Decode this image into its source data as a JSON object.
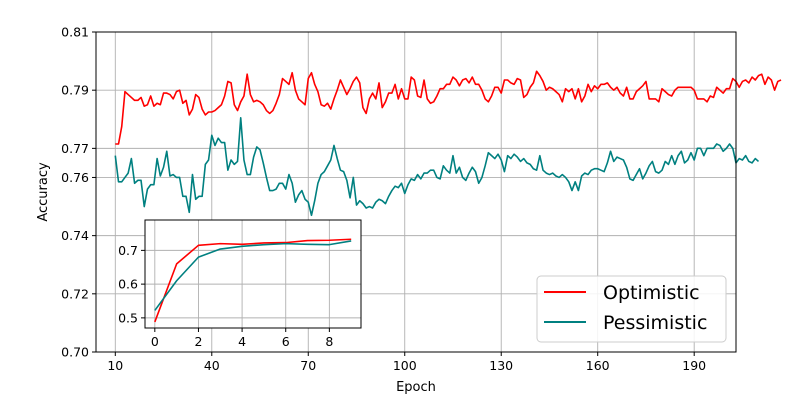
{
  "chart_data": [
    {
      "type": "line",
      "title": "",
      "xlabel": "Epoch",
      "ylabel": "Accuracy",
      "xlim": [
        4,
        203
      ],
      "ylim": [
        0.7,
        0.81
      ],
      "xticks": [
        10,
        40,
        70,
        100,
        130,
        160,
        190
      ],
      "yticks": [
        0.7,
        0.72,
        0.74,
        0.76,
        0.77,
        0.79,
        0.81
      ],
      "ytick_labels": [
        "0.70",
        "0.72",
        "0.74",
        "0.76",
        "0.77",
        "0.79",
        "0.81"
      ],
      "grid": true,
      "legend": "lower-right",
      "x_start": 10,
      "x_step": 1,
      "series": [
        {
          "name": "Optimistic",
          "color": "#ff0000",
          "values": [
            0.7715,
            0.7715,
            0.7775,
            0.7895,
            0.7885,
            0.7875,
            0.7865,
            0.7865,
            0.7875,
            0.7845,
            0.785,
            0.788,
            0.7845,
            0.7855,
            0.785,
            0.789,
            0.789,
            0.7885,
            0.787,
            0.7895,
            0.79,
            0.7855,
            0.7865,
            0.7815,
            0.7835,
            0.7885,
            0.7875,
            0.7835,
            0.7815,
            0.7825,
            0.7825,
            0.783,
            0.784,
            0.785,
            0.788,
            0.793,
            0.7925,
            0.785,
            0.783,
            0.786,
            0.788,
            0.7955,
            0.7885,
            0.786,
            0.7865,
            0.786,
            0.785,
            0.783,
            0.782,
            0.783,
            0.7855,
            0.7885,
            0.794,
            0.793,
            0.792,
            0.796,
            0.79,
            0.787,
            0.786,
            0.785,
            0.794,
            0.796,
            0.792,
            0.7895,
            0.785,
            0.7845,
            0.7855,
            0.7835,
            0.787,
            0.79,
            0.7935,
            0.791,
            0.7885,
            0.7905,
            0.793,
            0.7945,
            0.7925,
            0.784,
            0.782,
            0.787,
            0.789,
            0.787,
            0.7925,
            0.784,
            0.786,
            0.789,
            0.789,
            0.792,
            0.787,
            0.7905,
            0.787,
            0.787,
            0.7945,
            0.7935,
            0.788,
            0.7875,
            0.7935,
            0.787,
            0.7855,
            0.786,
            0.788,
            0.7905,
            0.7905,
            0.792,
            0.792,
            0.7945,
            0.7935,
            0.7915,
            0.7935,
            0.794,
            0.7925,
            0.7945,
            0.792,
            0.792,
            0.79,
            0.787,
            0.786,
            0.788,
            0.791,
            0.791,
            0.789,
            0.7935,
            0.7935,
            0.7925,
            0.792,
            0.794,
            0.7935,
            0.7875,
            0.7885,
            0.791,
            0.7925,
            0.7965,
            0.795,
            0.793,
            0.79,
            0.791,
            0.7905,
            0.7895,
            0.7885,
            0.786,
            0.7905,
            0.7895,
            0.7905,
            0.787,
            0.7905,
            0.786,
            0.788,
            0.792,
            0.7895,
            0.7915,
            0.7905,
            0.792,
            0.792,
            0.7925,
            0.791,
            0.79,
            0.791,
            0.789,
            0.788,
            0.791,
            0.787,
            0.787,
            0.7895,
            0.7905,
            0.7915,
            0.793,
            0.787,
            0.787,
            0.787,
            0.786,
            0.7905,
            0.7895,
            0.7885,
            0.788,
            0.79,
            0.791,
            0.791,
            0.791,
            0.791,
            0.791,
            0.79,
            0.787,
            0.787,
            0.787,
            0.786,
            0.788,
            0.7875,
            0.791,
            0.79,
            0.789,
            0.7905,
            0.7905,
            0.794,
            0.793,
            0.791,
            0.793,
            0.7935,
            0.7925,
            0.7945,
            0.7935,
            0.795,
            0.7955,
            0.792,
            0.7945,
            0.7935,
            0.79,
            0.793,
            0.7935
          ]
        },
        {
          "name": "Pessimistic",
          "color": "#008080",
          "values": [
            0.7675,
            0.7585,
            0.7585,
            0.76,
            0.7615,
            0.7665,
            0.758,
            0.759,
            0.759,
            0.75,
            0.756,
            0.7575,
            0.7575,
            0.7665,
            0.7605,
            0.7635,
            0.769,
            0.7605,
            0.761,
            0.76,
            0.76,
            0.7535,
            0.7535,
            0.748,
            0.761,
            0.7525,
            0.7535,
            0.7535,
            0.7645,
            0.766,
            0.7745,
            0.771,
            0.7735,
            0.772,
            0.772,
            0.7625,
            0.766,
            0.7645,
            0.7655,
            0.7805,
            0.766,
            0.761,
            0.761,
            0.767,
            0.7705,
            0.7695,
            0.765,
            0.76,
            0.7555,
            0.7555,
            0.756,
            0.758,
            0.758,
            0.756,
            0.761,
            0.758,
            0.7515,
            0.754,
            0.7555,
            0.7525,
            0.7515,
            0.747,
            0.752,
            0.758,
            0.761,
            0.762,
            0.764,
            0.766,
            0.771,
            0.7665,
            0.7625,
            0.762,
            0.759,
            0.753,
            0.76,
            0.7505,
            0.752,
            0.751,
            0.7495,
            0.75,
            0.7495,
            0.7515,
            0.7525,
            0.752,
            0.751,
            0.7535,
            0.7555,
            0.757,
            0.7565,
            0.758,
            0.7545,
            0.7575,
            0.7595,
            0.759,
            0.761,
            0.7595,
            0.7615,
            0.7615,
            0.7625,
            0.7625,
            0.76,
            0.7595,
            0.764,
            0.7625,
            0.7615,
            0.7675,
            0.7615,
            0.7635,
            0.76,
            0.759,
            0.7615,
            0.7635,
            0.762,
            0.758,
            0.76,
            0.764,
            0.7685,
            0.7675,
            0.7665,
            0.768,
            0.766,
            0.762,
            0.7675,
            0.7665,
            0.768,
            0.767,
            0.7655,
            0.7665,
            0.765,
            0.7645,
            0.763,
            0.7625,
            0.7675,
            0.7625,
            0.7615,
            0.761,
            0.7615,
            0.7605,
            0.76,
            0.761,
            0.76,
            0.7585,
            0.7555,
            0.7585,
            0.7555,
            0.7605,
            0.7615,
            0.761,
            0.7625,
            0.763,
            0.763,
            0.7625,
            0.762,
            0.765,
            0.769,
            0.7655,
            0.767,
            0.7665,
            0.766,
            0.7635,
            0.7595,
            0.759,
            0.761,
            0.763,
            0.7595,
            0.7615,
            0.764,
            0.7655,
            0.762,
            0.7615,
            0.7625,
            0.7655,
            0.7645,
            0.7675,
            0.7645,
            0.7675,
            0.769,
            0.765,
            0.766,
            0.7685,
            0.766,
            0.77,
            0.77,
            0.7675,
            0.77,
            0.77,
            0.77,
            0.7715,
            0.771,
            0.769,
            0.77,
            0.7715,
            0.77,
            0.765,
            0.7665,
            0.766,
            0.7675,
            0.7655,
            0.765,
            0.7665,
            0.7655
          ]
        }
      ]
    },
    {
      "type": "line",
      "title": "",
      "xlabel": "",
      "ylabel": "",
      "xlim": [
        -0.45,
        9.45
      ],
      "ylim": [
        0.47,
        0.79
      ],
      "xticks": [
        0,
        2,
        4,
        6,
        8
      ],
      "yticks": [
        0.5,
        0.6,
        0.7
      ],
      "grid": true,
      "series": [
        {
          "name": "Optimistic",
          "color": "#ff0000",
          "x": [
            0,
            1,
            2,
            3,
            4,
            5,
            6,
            7,
            8,
            9
          ],
          "values": [
            0.488,
            0.66,
            0.715,
            0.72,
            0.718,
            0.722,
            0.723,
            0.729,
            0.73,
            0.733
          ]
        },
        {
          "name": "Pessimistic",
          "color": "#008080",
          "x": [
            0,
            1,
            2,
            3,
            4,
            5,
            6,
            7,
            8,
            9
          ],
          "values": [
            0.522,
            0.61,
            0.68,
            0.704,
            0.712,
            0.717,
            0.72,
            0.718,
            0.717,
            0.728
          ]
        }
      ]
    }
  ]
}
